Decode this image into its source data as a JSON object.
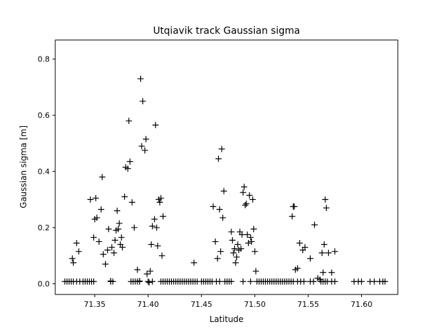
{
  "chart_data": {
    "type": "scatter",
    "title": "Utqiavik track Gaussian sigma",
    "xlabel": "Latitude",
    "ylabel": "Gaussian sigma [m]",
    "xlim": [
      71.313,
      71.634
    ],
    "ylim": [
      -0.038,
      0.868
    ],
    "xticks": [
      71.35,
      71.4,
      71.45,
      71.5,
      71.55,
      71.6
    ],
    "xtick_labels": [
      "71.35",
      "71.40",
      "71.45",
      "71.50",
      "71.55",
      "71.60"
    ],
    "yticks": [
      0.0,
      0.2,
      0.4,
      0.6,
      0.8
    ],
    "ytick_labels": [
      "0.0",
      "0.2",
      "0.4",
      "0.6",
      "0.8"
    ],
    "marker": "+",
    "color": "#000000",
    "grid": false,
    "legend": "none",
    "series": [
      {
        "name": "",
        "x": [
          71.322,
          71.324,
          71.326,
          71.328,
          71.33,
          71.333,
          71.336,
          71.339,
          71.341,
          71.343,
          71.345,
          71.347,
          71.349,
          71.365,
          71.367,
          71.384,
          71.386,
          71.388,
          71.39,
          71.392,
          71.4,
          71.404,
          71.412,
          71.414,
          71.416,
          71.418,
          71.42,
          71.422,
          71.424,
          71.426,
          71.428,
          71.43,
          71.432,
          71.434,
          71.436,
          71.438,
          71.44,
          71.442,
          71.444,
          71.446,
          71.45,
          71.452,
          71.454,
          71.456,
          71.458,
          71.46,
          71.464,
          71.467,
          71.472,
          71.474,
          71.476,
          71.478,
          71.489,
          71.496,
          71.502,
          71.504,
          71.506,
          71.508,
          71.51,
          71.512,
          71.514,
          71.516,
          71.518,
          71.52,
          71.522,
          71.524,
          71.526,
          71.528,
          71.53,
          71.532,
          71.534,
          71.536,
          71.54,
          71.543,
          71.546,
          71.552,
          71.555,
          71.562,
          71.564,
          71.566,
          71.568,
          71.572,
          71.575,
          71.593,
          71.597,
          71.6,
          71.608,
          71.612,
          71.617,
          71.62,
          71.622,
          71.329,
          71.33,
          71.333,
          71.335,
          71.346,
          71.349,
          71.35,
          71.351,
          71.352,
          71.354,
          71.356,
          71.357,
          71.358,
          71.36,
          71.362,
          71.363,
          71.365,
          71.366,
          71.368,
          71.369,
          71.37,
          71.371,
          71.372,
          71.373,
          71.374,
          71.375,
          71.376,
          71.378,
          71.379,
          71.381,
          71.382,
          71.383,
          71.385,
          71.387,
          71.39,
          71.392,
          71.393,
          71.394,
          71.395,
          71.397,
          71.398,
          71.399,
          71.401,
          71.402,
          71.403,
          71.404,
          71.406,
          71.407,
          71.408,
          71.409,
          71.41,
          71.411,
          71.412,
          71.413,
          71.414,
          71.443,
          71.461,
          71.463,
          71.465,
          71.466,
          71.467,
          71.468,
          71.469,
          71.47,
          71.471,
          71.478,
          71.479,
          71.48,
          71.481,
          71.482,
          71.483,
          71.484,
          71.485,
          71.486,
          71.487,
          71.488,
          71.489,
          71.49,
          71.491,
          71.492,
          71.493,
          71.494,
          71.495,
          71.496,
          71.497,
          71.498,
          71.499,
          71.5,
          71.501,
          71.535,
          71.536,
          71.537,
          71.538,
          71.54,
          71.542,
          71.545,
          71.547,
          71.552,
          71.556,
          71.559,
          71.561,
          71.563,
          71.564,
          71.565,
          71.566,
          71.567,
          71.569,
          71.572,
          71.575
        ],
        "y": [
          0.008,
          0.008,
          0.008,
          0.008,
          0.008,
          0.008,
          0.008,
          0.008,
          0.008,
          0.008,
          0.008,
          0.008,
          0.008,
          0.008,
          0.008,
          0.008,
          0.008,
          0.008,
          0.008,
          0.008,
          0.008,
          0.008,
          0.008,
          0.008,
          0.008,
          0.008,
          0.008,
          0.008,
          0.008,
          0.008,
          0.008,
          0.008,
          0.008,
          0.008,
          0.008,
          0.008,
          0.008,
          0.008,
          0.008,
          0.008,
          0.008,
          0.008,
          0.008,
          0.008,
          0.008,
          0.008,
          0.008,
          0.008,
          0.008,
          0.008,
          0.008,
          0.008,
          0.008,
          0.008,
          0.008,
          0.008,
          0.008,
          0.008,
          0.008,
          0.008,
          0.008,
          0.008,
          0.008,
          0.008,
          0.008,
          0.008,
          0.008,
          0.008,
          0.008,
          0.008,
          0.008,
          0.008,
          0.008,
          0.008,
          0.008,
          0.008,
          0.008,
          0.008,
          0.008,
          0.008,
          0.008,
          0.008,
          0.008,
          0.008,
          0.008,
          0.008,
          0.008,
          0.008,
          0.008,
          0.008,
          0.008,
          0.09,
          0.075,
          0.145,
          0.115,
          0.3,
          0.165,
          0.23,
          0.305,
          0.235,
          0.15,
          0.265,
          0.38,
          0.105,
          0.07,
          0.12,
          0.195,
          0.01,
          0.13,
          0.11,
          0.155,
          0.19,
          0.26,
          0.195,
          0.215,
          0.14,
          0.165,
          0.13,
          0.31,
          0.415,
          0.41,
          0.58,
          0.435,
          0.29,
          0.2,
          0.05,
          0.01,
          0.73,
          0.49,
          0.65,
          0.475,
          0.515,
          0.035,
          0.005,
          0.045,
          0.14,
          0.205,
          0.23,
          0.565,
          0.2,
          0.135,
          0.3,
          0.29,
          0.305,
          0.1,
          0.24,
          0.075,
          0.275,
          0.15,
          0.09,
          0.445,
          0.265,
          0.115,
          0.48,
          0.235,
          0.33,
          0.185,
          0.155,
          0.11,
          0.125,
          0.075,
          0.095,
          0.14,
          0.12,
          0.185,
          0.125,
          0.175,
          0.325,
          0.345,
          0.28,
          0.285,
          0.175,
          0.145,
          0.315,
          0.165,
          0.15,
          0.3,
          0.195,
          0.115,
          0.045,
          0.24,
          0.275,
          0.275,
          0.05,
          0.055,
          0.145,
          0.12,
          0.13,
          0.09,
          0.21,
          0.02,
          0.015,
          0.11,
          0.04,
          0.14,
          0.3,
          0.27,
          0.11,
          0.04,
          0.115
        ]
      }
    ]
  }
}
